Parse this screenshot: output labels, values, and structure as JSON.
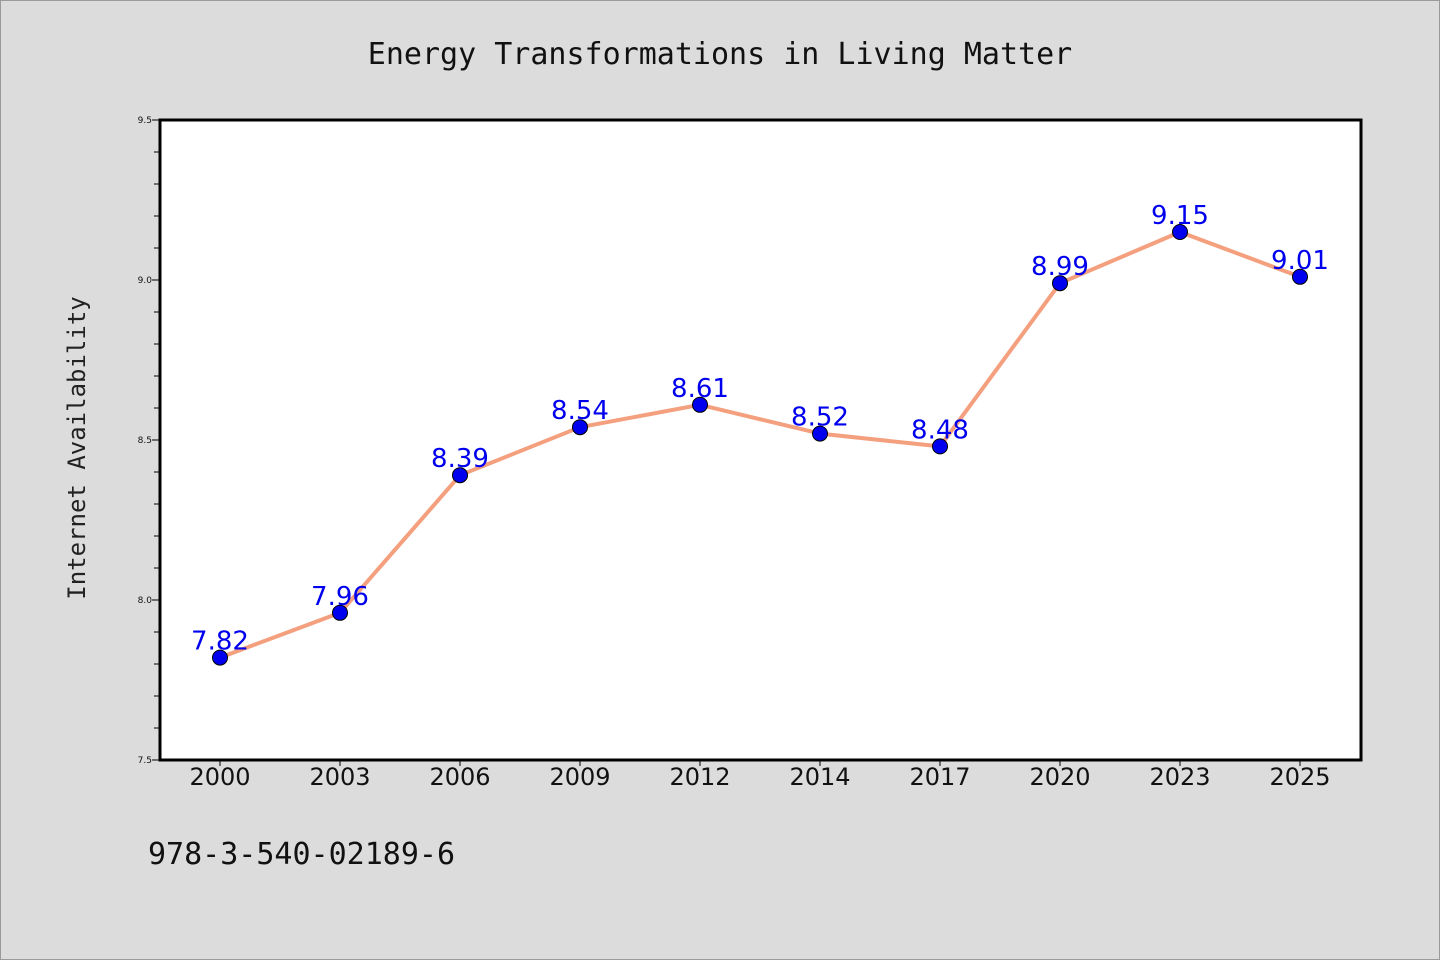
{
  "chart_data": {
    "type": "line",
    "title": "Energy Transformations in Living Matter",
    "xlabel": "",
    "ylabel": "Internet Availability",
    "categories": [
      "2000",
      "2003",
      "2006",
      "2009",
      "2012",
      "2014",
      "2017",
      "2020",
      "2023",
      "2025"
    ],
    "series": [
      {
        "values": [
          7.82,
          7.96,
          8.39,
          8.54,
          8.61,
          8.52,
          8.48,
          8.99,
          9.15,
          9.01
        ],
        "labels": [
          "7.82",
          "7.96",
          "8.39",
          "8.54",
          "8.61",
          "8.52",
          "8.48",
          "8.99",
          "9.15",
          "9.01"
        ],
        "line_color": "#f4a07e",
        "marker_color": "#0000ee",
        "label_color": "#0000ee"
      }
    ],
    "ylim": [
      7.5,
      9.5
    ],
    "yticks": [
      "7.5",
      "8.0",
      "8.5",
      "9.0",
      "9.5"
    ],
    "grid": false,
    "legend": "none"
  },
  "footer": {
    "isbn": "978-3-540-02189-6"
  },
  "colors": {
    "page_background": "#dcdcdc",
    "plot_background": "#ffffff"
  }
}
